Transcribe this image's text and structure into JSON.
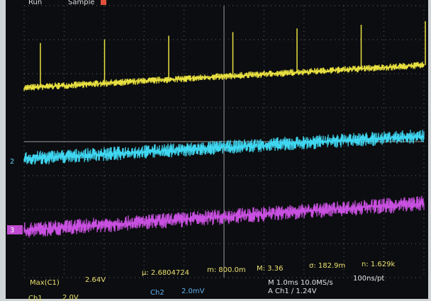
{
  "header": {
    "run": "Run",
    "mode": "Sample"
  },
  "markers": {
    "ch2": "2",
    "ch3": "3"
  },
  "measurements": {
    "label": "Max(C1)",
    "value": "2.64V",
    "mean": "µ: 2.6804724",
    "min": "m: 800.0m",
    "max": "M: 3.36",
    "sigma": "σ: 182.9m",
    "count": "n: 1.629k"
  },
  "status": {
    "ch1": "Ch1",
    "ch1_scale": "2.0V",
    "ch2": "Ch2",
    "ch2_scale": "2.0mV",
    "timebase": "M 1.0ms 10.0MS/s",
    "resolution": "100ns/pt",
    "trigger": "A Ch1 ∕ 1.24V"
  }
}
